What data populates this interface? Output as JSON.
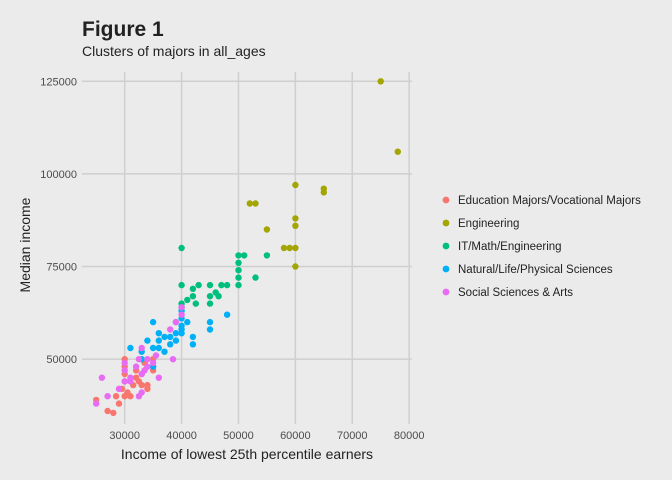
{
  "chart_data": {
    "type": "scatter",
    "title": "Figure 1",
    "subtitle": "Clusters of majors in all_ages",
    "xlabel": "Income of lowest 25th percentile earners",
    "ylabel": "Median income",
    "xlim": [
      22500,
      80500
    ],
    "ylim": [
      32500,
      127500
    ],
    "x_ticks": [
      30000,
      40000,
      50000,
      60000,
      70000,
      80000
    ],
    "y_ticks": [
      50000,
      75000,
      100000,
      125000
    ],
    "grid": true,
    "legend_position": "right",
    "series": [
      {
        "name": "Education Majors/Vocational Majors",
        "color": "#F8766D",
        "points": [
          [
            25000,
            39000
          ],
          [
            27000,
            36000
          ],
          [
            28000,
            35500
          ],
          [
            28500,
            40000
          ],
          [
            29000,
            38000
          ],
          [
            29500,
            42000
          ],
          [
            30000,
            40000
          ],
          [
            30000,
            44000
          ],
          [
            30000,
            46000
          ],
          [
            30000,
            48000
          ],
          [
            30000,
            50000
          ],
          [
            31000,
            40000
          ],
          [
            31500,
            43000
          ],
          [
            32000,
            45000
          ],
          [
            32000,
            47000
          ],
          [
            33000,
            43000
          ],
          [
            33000,
            46000
          ],
          [
            33500,
            49000
          ],
          [
            34000,
            42000
          ],
          [
            34000,
            43000
          ],
          [
            35000,
            47000
          ],
          [
            35000,
            50000
          ],
          [
            30500,
            41000
          ],
          [
            32500,
            44000
          ]
        ]
      },
      {
        "name": "Engineering",
        "color": "#A3A500",
        "points": [
          [
            75000,
            125000
          ],
          [
            78000,
            106000
          ],
          [
            60000,
            97000
          ],
          [
            65000,
            96000
          ],
          [
            65000,
            95000
          ],
          [
            52000,
            92000
          ],
          [
            53000,
            92000
          ],
          [
            55000,
            85000
          ],
          [
            60000,
            88000
          ],
          [
            60000,
            86000
          ],
          [
            58000,
            80000
          ],
          [
            59000,
            80000
          ],
          [
            60000,
            80000
          ],
          [
            60000,
            75000
          ]
        ]
      },
      {
        "name": "IT/Math/Engineering",
        "color": "#00BF7D",
        "points": [
          [
            40000,
            80000
          ],
          [
            40000,
            70000
          ],
          [
            40000,
            65000
          ],
          [
            41000,
            66000
          ],
          [
            42000,
            69000
          ],
          [
            42500,
            65000
          ],
          [
            43000,
            70000
          ],
          [
            42000,
            67000
          ],
          [
            45000,
            70000
          ],
          [
            45000,
            67000
          ],
          [
            45000,
            65000
          ],
          [
            46000,
            68000
          ],
          [
            46500,
            67000
          ],
          [
            47000,
            70000
          ],
          [
            48000,
            70000
          ],
          [
            50000,
            78000
          ],
          [
            51000,
            78000
          ],
          [
            50000,
            76000
          ],
          [
            50000,
            74000
          ],
          [
            50000,
            72000
          ],
          [
            50000,
            70000
          ],
          [
            53000,
            72000
          ],
          [
            55000,
            78000
          ],
          [
            40000,
            64000
          ]
        ]
      },
      {
        "name": "Natural/Life/Physical Sciences",
        "color": "#00B0F6",
        "points": [
          [
            31000,
            53000
          ],
          [
            33000,
            52000
          ],
          [
            34000,
            55000
          ],
          [
            35000,
            60000
          ],
          [
            35000,
            53000
          ],
          [
            36000,
            57000
          ],
          [
            36000,
            55000
          ],
          [
            36000,
            53000
          ],
          [
            37000,
            52000
          ],
          [
            38000,
            56000
          ],
          [
            38000,
            54000
          ],
          [
            39000,
            60000
          ],
          [
            39000,
            57000
          ],
          [
            39000,
            55000
          ],
          [
            40000,
            63000
          ],
          [
            40000,
            61000
          ],
          [
            40000,
            59000
          ],
          [
            40000,
            57000
          ],
          [
            41000,
            60000
          ],
          [
            42000,
            56000
          ],
          [
            42000,
            54000
          ],
          [
            45000,
            58000
          ],
          [
            45000,
            60000
          ],
          [
            48000,
            62000
          ],
          [
            35000,
            48000
          ],
          [
            33000,
            50000
          ],
          [
            37000,
            56000
          ],
          [
            40000,
            58000
          ]
        ]
      },
      {
        "name": "Social Sciences & Arts",
        "color": "#E76BF3",
        "points": [
          [
            25000,
            38000
          ],
          [
            26000,
            45000
          ],
          [
            27000,
            40000
          ],
          [
            29000,
            42000
          ],
          [
            30000,
            44000
          ],
          [
            30000,
            47000
          ],
          [
            30000,
            49000
          ],
          [
            31000,
            45000
          ],
          [
            32000,
            48000
          ],
          [
            32500,
            50000
          ],
          [
            33000,
            53000
          ],
          [
            33000,
            46000
          ],
          [
            33500,
            47000
          ],
          [
            34000,
            50000
          ],
          [
            35000,
            49000
          ],
          [
            35500,
            51000
          ],
          [
            36000,
            45000
          ],
          [
            38000,
            58000
          ],
          [
            38500,
            50000
          ],
          [
            39000,
            60000
          ],
          [
            40000,
            62000
          ],
          [
            40000,
            64000
          ],
          [
            32500,
            40000
          ],
          [
            33000,
            41000
          ],
          [
            34000,
            48000
          ],
          [
            31000,
            44000
          ]
        ]
      }
    ]
  }
}
